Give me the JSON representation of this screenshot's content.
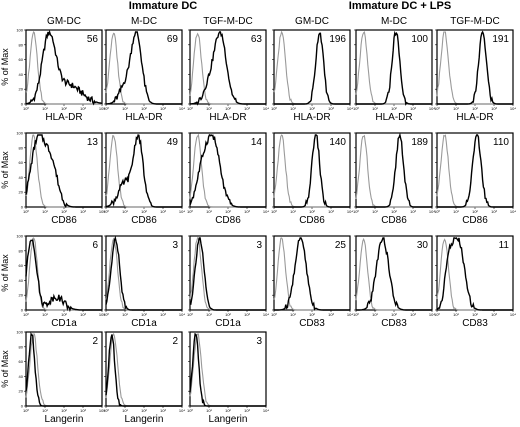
{
  "headers": {
    "immature": "Immature DC",
    "lps": "Immature DC + LPS"
  },
  "columns": [
    "GM-DC",
    "M-DC",
    "TGF-M-DC",
    "GM-DC",
    "M-DC",
    "TGF-M-DC"
  ],
  "colors": {
    "isotype": "#9a9a9a",
    "stain": "#000000"
  },
  "chart_data": {
    "type": "histogram-grid",
    "ylabel": "% of Max",
    "xscale": "log",
    "x_ticks": [
      "10⁰",
      "10¹",
      "10²",
      "10³",
      "10⁴"
    ],
    "y_ticks": [
      0,
      20,
      40,
      60,
      80,
      100
    ],
    "xlim": [
      1,
      10000
    ],
    "ylim": [
      0,
      100
    ],
    "rows": [
      {
        "panels": [
          {
            "col": 0,
            "marker": "HLA-DR",
            "mfi": "56"
          },
          {
            "col": 1,
            "marker": "HLA-DR",
            "mfi": "69"
          },
          {
            "col": 2,
            "marker": "HLA-DR",
            "mfi": "63"
          },
          {
            "col": 3,
            "marker": "HLA-DR",
            "mfi": "196"
          },
          {
            "col": 4,
            "marker": "HLA-DR",
            "mfi": "100"
          },
          {
            "col": 5,
            "marker": "HLA-DR",
            "mfi": "191"
          }
        ]
      },
      {
        "panels": [
          {
            "col": 0,
            "marker": "CD86",
            "mfi": "13"
          },
          {
            "col": 1,
            "marker": "CD86",
            "mfi": "49"
          },
          {
            "col": 2,
            "marker": "CD86",
            "mfi": "14"
          },
          {
            "col": 3,
            "marker": "CD86",
            "mfi": "140"
          },
          {
            "col": 4,
            "marker": "CD86",
            "mfi": "189"
          },
          {
            "col": 5,
            "marker": "CD86",
            "mfi": "110"
          }
        ]
      },
      {
        "panels": [
          {
            "col": 0,
            "marker": "CD1a",
            "mfi": "6"
          },
          {
            "col": 1,
            "marker": "CD1a",
            "mfi": "3"
          },
          {
            "col": 2,
            "marker": "CD1a",
            "mfi": "3"
          },
          {
            "col": 3,
            "marker": "CD83",
            "mfi": "25"
          },
          {
            "col": 4,
            "marker": "CD83",
            "mfi": "30"
          },
          {
            "col": 5,
            "marker": "CD83",
            "mfi": "11"
          }
        ]
      },
      {
        "panels": [
          {
            "col": 0,
            "marker": "Langerin",
            "mfi": "2"
          },
          {
            "col": 1,
            "marker": "Langerin",
            "mfi": "2"
          },
          {
            "col": 2,
            "marker": "Langerin",
            "mfi": "3"
          }
        ]
      }
    ],
    "isotype_peak_log10": 0.4,
    "stain_curves": [
      [
        {
          "p": 1.2,
          "w": 0.35,
          "h": 1.0
        },
        {
          "p": 2.2,
          "w": 0.7,
          "h": 0.3
        }
      ],
      [
        {
          "p": 1.6,
          "w": 0.28,
          "h": 1.0
        },
        {
          "p": 1.0,
          "w": 0.3,
          "h": 0.25
        }
      ],
      [
        {
          "p": 1.6,
          "w": 0.32,
          "h": 1.0
        },
        {
          "p": 1.0,
          "w": 0.3,
          "h": 0.25
        }
      ],
      [
        {
          "p": 2.4,
          "w": 0.2,
          "h": 1.0
        }
      ],
      [
        {
          "p": 2.1,
          "w": 0.2,
          "h": 1.0
        }
      ],
      [
        {
          "p": 2.4,
          "w": 0.2,
          "h": 1.0
        }
      ],
      [
        {
          "p": 0.6,
          "w": 0.35,
          "h": 1.0
        },
        {
          "p": 1.3,
          "w": 0.35,
          "h": 0.7
        }
      ],
      [
        {
          "p": 1.7,
          "w": 0.25,
          "h": 1.0
        },
        {
          "p": 1.0,
          "w": 0.35,
          "h": 0.35
        }
      ],
      [
        {
          "p": 1.2,
          "w": 0.38,
          "h": 1.0
        },
        {
          "p": 0.6,
          "w": 0.3,
          "h": 0.4
        }
      ],
      [
        {
          "p": 2.2,
          "w": 0.2,
          "h": 1.0
        }
      ],
      [
        {
          "p": 2.3,
          "w": 0.2,
          "h": 1.0
        }
      ],
      [
        {
          "p": 2.1,
          "w": 0.22,
          "h": 1.0
        }
      ],
      [
        {
          "p": 0.3,
          "w": 0.25,
          "h": 1.0
        },
        {
          "p": 1.6,
          "w": 0.4,
          "h": 0.18
        }
      ],
      [
        {
          "p": 0.5,
          "w": 0.22,
          "h": 1.0
        }
      ],
      [
        {
          "p": 0.5,
          "w": 0.22,
          "h": 1.0
        }
      ],
      [
        {
          "p": 1.4,
          "w": 0.3,
          "h": 1.0
        }
      ],
      [
        {
          "p": 1.4,
          "w": 0.32,
          "h": 1.0
        }
      ],
      [
        {
          "p": 1.1,
          "w": 0.33,
          "h": 1.0
        },
        {
          "p": 0.6,
          "w": 0.2,
          "h": 0.5
        }
      ],
      [
        {
          "p": 0.3,
          "w": 0.16,
          "h": 1.0
        }
      ],
      [
        {
          "p": 0.3,
          "w": 0.16,
          "h": 1.0
        }
      ],
      [
        {
          "p": 0.3,
          "w": 0.16,
          "h": 1.0
        }
      ]
    ]
  }
}
